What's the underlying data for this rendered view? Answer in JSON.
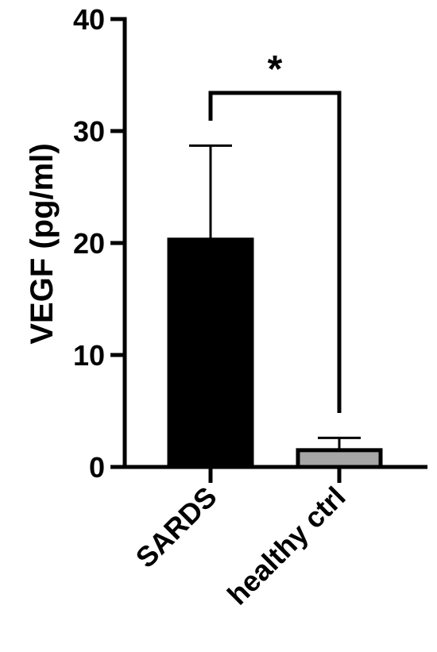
{
  "chart_data": {
    "type": "bar",
    "categories": [
      "SARDS",
      "healthy ctrl"
    ],
    "values": [
      20.3,
      1.5
    ],
    "error_upper": [
      28.7,
      2.6
    ],
    "bar_colors": [
      "#000000",
      "#a6a6a6"
    ],
    "ylabel": "VEGF (pg/ml)",
    "ylim": [
      0,
      40
    ],
    "yticks": [
      "0",
      "10",
      "20",
      "30",
      "40"
    ],
    "significance": {
      "label": "*",
      "between": [
        "SARDS",
        "healthy ctrl"
      ]
    }
  }
}
